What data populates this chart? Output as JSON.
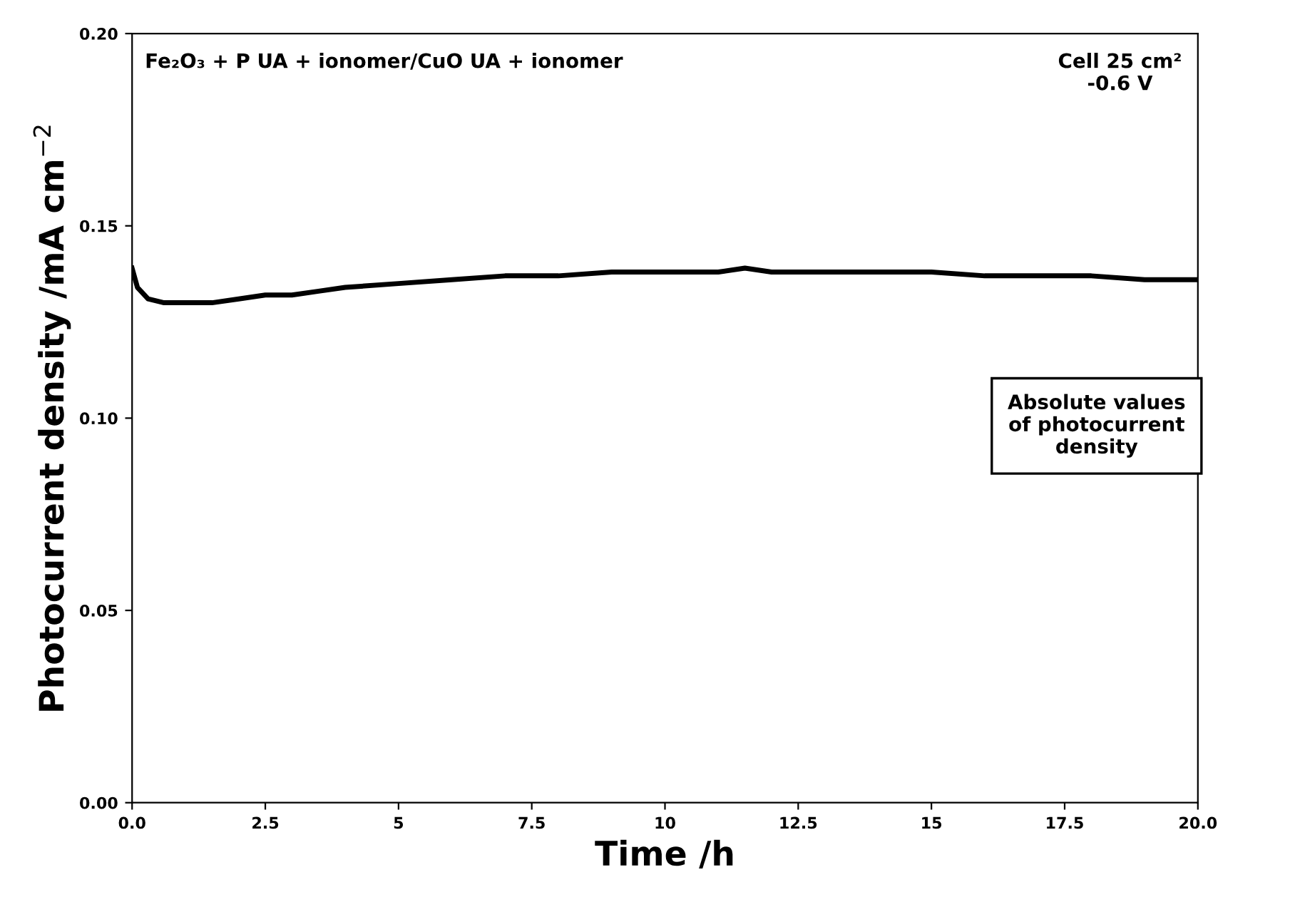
{
  "chart_data": {
    "type": "line",
    "title": "Fe₂O₃ + P UA + ionomer/CuO UA + ionomer",
    "xlabel": "Time /h",
    "ylabel": "Photocurrent density /mA cm$^{−2}$",
    "x": [
      0,
      0.1,
      0.3,
      0.6,
      1,
      1.5,
      2,
      2.5,
      3,
      3.5,
      4,
      5,
      6,
      7,
      8,
      9,
      10,
      11,
      11.5,
      12,
      13,
      14,
      15,
      16,
      17,
      18,
      19,
      20
    ],
    "series": [
      {
        "color": "#000000",
        "values": [
          0.139,
          0.134,
          0.131,
          0.13,
          0.13,
          0.13,
          0.131,
          0.132,
          0.132,
          0.133,
          0.134,
          0.135,
          0.136,
          0.137,
          0.137,
          0.138,
          0.138,
          0.138,
          0.139,
          0.138,
          0.138,
          0.138,
          0.138,
          0.137,
          0.137,
          0.137,
          0.136,
          0.136
        ]
      }
    ],
    "xlim": [
      0,
      20
    ],
    "ylim": [
      0,
      0.2
    ],
    "xticks": [
      {
        "value": 0,
        "label": "0.0"
      },
      2.5,
      5,
      7.5,
      10,
      12.5,
      15,
      17.5,
      {
        "value": 20,
        "label": "20.0"
      }
    ],
    "yticks": [
      {
        "value": 0,
        "label": "0.00"
      },
      0.05,
      {
        "value": 0.1,
        "label": "0.10"
      },
      0.15,
      {
        "value": 0.2,
        "label": "0.20"
      }
    ],
    "annotations": [
      "Cell 25 cm²\n-0.6 V",
      "Absolute values\nof photocurrent\ndensity"
    ],
    "grid": false,
    "legend": false,
    "marker": "none",
    "line_style": "solid"
  }
}
